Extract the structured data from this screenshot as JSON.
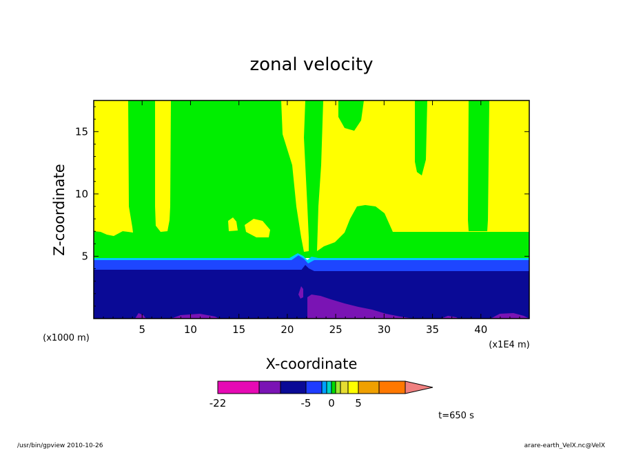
{
  "chart_data": {
    "type": "heatmap",
    "title": "zonal velocity",
    "xlabel": "X-coordinate",
    "ylabel": "Z-coordinate",
    "x_unit": "(x1E4 m)",
    "y_unit": "(x1000 m)",
    "xlim": [
      0,
      45
    ],
    "ylim": [
      0,
      17.5
    ],
    "x_ticks": [
      "5",
      "10",
      "15",
      "20",
      "25",
      "30",
      "35",
      "40"
    ],
    "y_ticks": [
      "5",
      "10",
      "15"
    ],
    "levels": [
      {
        "name": "lt_-22",
        "color": "#e60ab4"
      },
      {
        "name": "-22_to_-15",
        "color": "#7a14b4"
      },
      {
        "name": "-15_to_-8",
        "color": "#0a0a96"
      },
      {
        "name": "-8_to_-5",
        "color": "#1e3cff"
      },
      {
        "name": "-5_to_-3",
        "color": "#00a0ff"
      },
      {
        "name": "-3_to_-1",
        "color": "#00d2c8"
      },
      {
        "name": "-1_to_0",
        "color": "#00dc00"
      },
      {
        "name": "0_to_1",
        "color": "#a0e632"
      },
      {
        "name": "1_to_3",
        "color": "#e6dc32"
      },
      {
        "name": "3_to_5",
        "color": "#ffff00"
      },
      {
        "name": "5_to_8",
        "color": "#f0a000"
      },
      {
        "name": "8_to_12",
        "color": "#ff7800"
      },
      {
        "name": "12_to_16",
        "color": "#ff1e1e"
      },
      {
        "name": "gt_16",
        "color": "#f08080"
      }
    ],
    "colorbar_labels": [
      "-22",
      "-5",
      "0",
      "5"
    ],
    "colors": {
      "upper_negative": "#00ee00",
      "upper_positive": "#ffff00",
      "layer_cyan": "#00c8ff",
      "layer_blue": "#1e46ff",
      "lower_navy": "#0a0a96",
      "lower_purple": "#7a14b4"
    }
  },
  "annotations": {
    "time_label": "t=650 s",
    "footer_left": "/usr/bin/gpview  2010-10-26",
    "footer_right": "arare-earth_VelX.nc@VelX"
  }
}
